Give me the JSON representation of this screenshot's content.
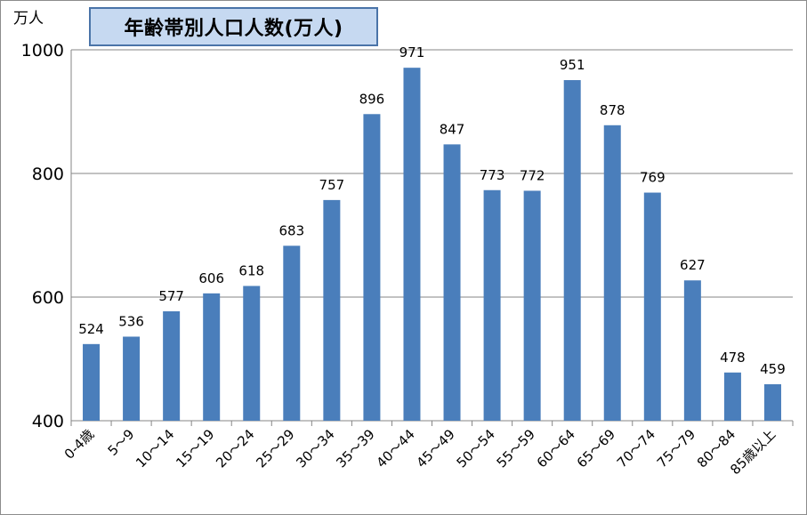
{
  "chart_data": {
    "type": "bar",
    "title": "年齢帯別人口人数(万人)",
    "ylabel": "万人",
    "xlabel": "",
    "ylim": [
      400,
      1000
    ],
    "yticks": [
      400,
      600,
      800,
      1000
    ],
    "grid": true,
    "legend": "none",
    "bar_color": "#4a7ebb",
    "categories": [
      "0-4歳",
      "5～9",
      "10～14",
      "15～19",
      "20～24",
      "25～29",
      "30～34",
      "35～39",
      "40～44",
      "45～49",
      "50～54",
      "55～59",
      "60～64",
      "65～69",
      "70～74",
      "75～79",
      "80～84",
      "85歳以上"
    ],
    "values": [
      524,
      536,
      577,
      606,
      618,
      683,
      757,
      896,
      971,
      847,
      773,
      772,
      951,
      878,
      769,
      627,
      478,
      459
    ]
  }
}
